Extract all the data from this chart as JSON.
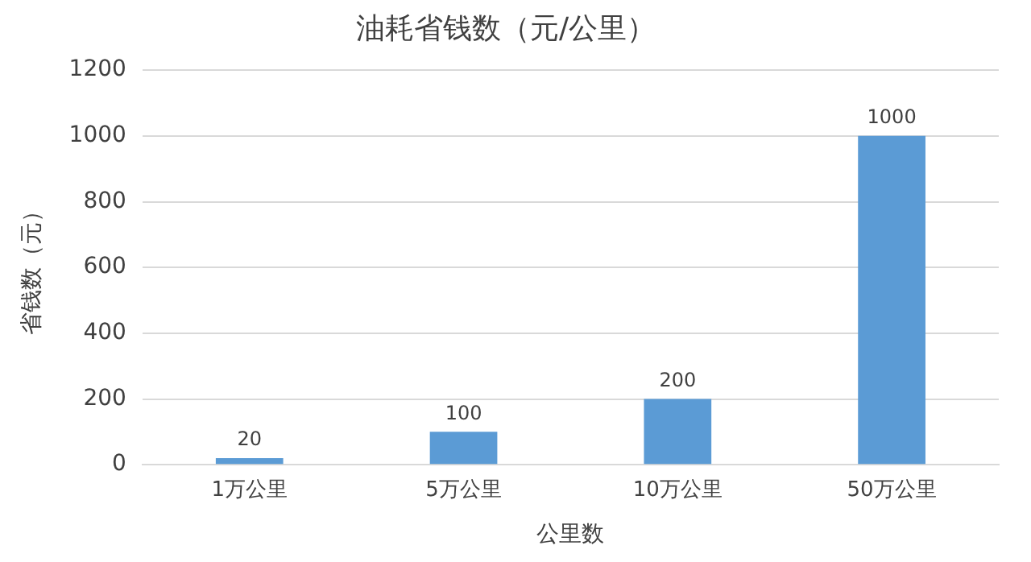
{
  "chart_data": {
    "type": "bar",
    "title": "油耗省钱数（元/公里）",
    "xlabel": "公里数",
    "ylabel": "省钱数（元）",
    "categories": [
      "1万公里",
      "5万公里",
      "10万公里",
      "50万公里"
    ],
    "values": [
      20,
      100,
      200,
      1000
    ],
    "color": "#5b9bd5",
    "ylim": [
      0,
      1200
    ],
    "yticks": [
      0,
      200,
      400,
      600,
      800,
      1000,
      1200
    ],
    "grid": "y",
    "legend": false,
    "data_labels": true
  }
}
